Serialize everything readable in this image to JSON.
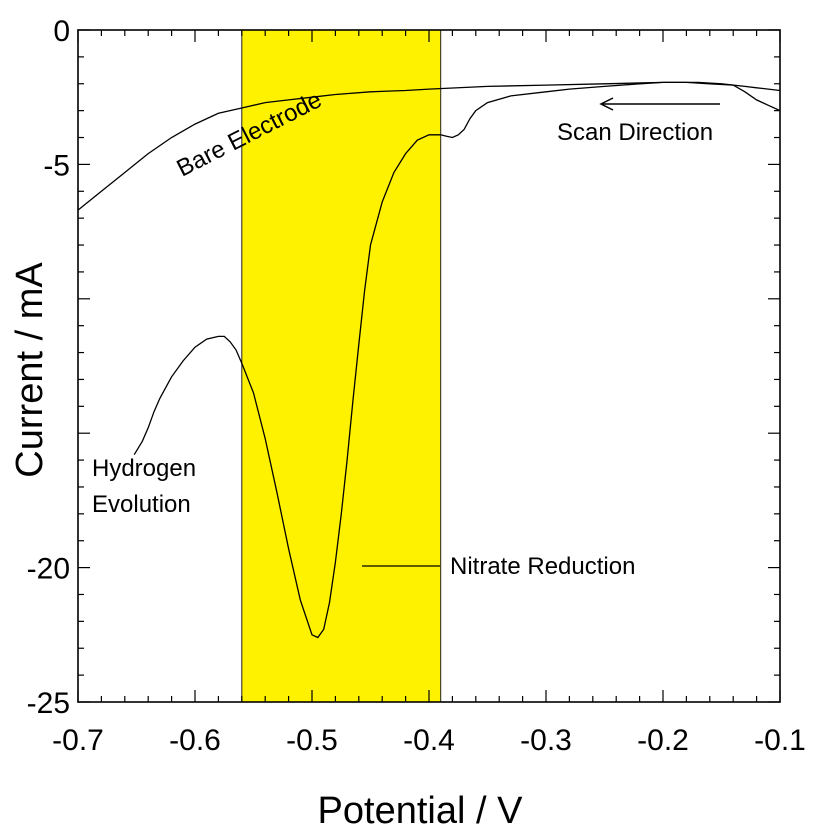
{
  "chart_data": {
    "type": "line",
    "title": "",
    "xlabel": "Potential / V",
    "ylabel": "Current / mA",
    "xlim": [
      -0.7,
      -0.1
    ],
    "ylim": [
      -25,
      0
    ],
    "x_ticks": [
      -0.7,
      -0.6,
      -0.5,
      -0.4,
      -0.3,
      -0.2,
      -0.1
    ],
    "x_tick_labels": [
      "-0.7",
      "-0.6",
      "-0.5",
      "-0.4",
      "-0.3",
      "-0.2",
      "-0.1"
    ],
    "y_ticks": [
      0,
      -5,
      -20,
      -25
    ],
    "y_tick_labels": [
      "0",
      "-5",
      "-20",
      "-25"
    ],
    "grid": false,
    "highlight_band": {
      "x_range": [
        -0.56,
        -0.39
      ],
      "color": "#fff200"
    },
    "series": [
      {
        "name": "Bare Electrode",
        "x": [
          -0.7,
          -0.68,
          -0.66,
          -0.64,
          -0.62,
          -0.6,
          -0.58,
          -0.56,
          -0.54,
          -0.52,
          -0.5,
          -0.48,
          -0.45,
          -0.42,
          -0.4,
          -0.35,
          -0.3,
          -0.25,
          -0.2,
          -0.17,
          -0.15,
          -0.13,
          -0.12,
          -0.11,
          -0.1
        ],
        "y": [
          -6.7,
          -6.0,
          -5.3,
          -4.6,
          -4.0,
          -3.5,
          -3.1,
          -2.9,
          -2.7,
          -2.6,
          -2.5,
          -2.4,
          -2.3,
          -2.25,
          -2.2,
          -2.1,
          -2.05,
          -2.0,
          -1.95,
          -1.95,
          -2.0,
          -2.1,
          -2.15,
          -2.2,
          -2.25
        ]
      },
      {
        "name": "",
        "x": [
          -0.652,
          -0.645,
          -0.64,
          -0.635,
          -0.63,
          -0.62,
          -0.61,
          -0.6,
          -0.59,
          -0.58,
          -0.575,
          -0.57,
          -0.565,
          -0.56,
          -0.55,
          -0.54,
          -0.53,
          -0.52,
          -0.51,
          -0.5,
          -0.495,
          -0.49,
          -0.485,
          -0.48,
          -0.475,
          -0.47,
          -0.465,
          -0.46,
          -0.455,
          -0.45,
          -0.44,
          -0.43,
          -0.42,
          -0.41,
          -0.4,
          -0.395,
          -0.39,
          -0.385,
          -0.38,
          -0.375,
          -0.37,
          -0.365,
          -0.36,
          -0.35,
          -0.33,
          -0.3,
          -0.28,
          -0.25,
          -0.22,
          -0.2,
          -0.18,
          -0.16,
          -0.14,
          -0.13,
          -0.12,
          -0.11,
          -0.1
        ],
        "y": [
          -15.8,
          -15.3,
          -14.8,
          -14.2,
          -13.7,
          -12.9,
          -12.3,
          -11.8,
          -11.5,
          -11.4,
          -11.4,
          -11.6,
          -11.9,
          -12.4,
          -13.5,
          -15.2,
          -17.2,
          -19.3,
          -21.2,
          -22.5,
          -22.6,
          -22.3,
          -21.3,
          -19.8,
          -18.0,
          -16.0,
          -13.8,
          -11.7,
          -9.7,
          -8.0,
          -6.4,
          -5.3,
          -4.6,
          -4.1,
          -3.9,
          -3.9,
          -3.9,
          -3.95,
          -4.0,
          -3.9,
          -3.7,
          -3.3,
          -3.0,
          -2.7,
          -2.45,
          -2.3,
          -2.2,
          -2.1,
          -2.0,
          -1.95,
          -1.95,
          -2.0,
          -2.05,
          -2.3,
          -2.6,
          -2.8,
          -3.0
        ]
      }
    ],
    "annotations": {
      "bare_electrode": "Bare Electrode",
      "scan_direction": "Scan Direction",
      "hydrogen_line1": "Hydrogen",
      "hydrogen_line2": "Evolution",
      "nitrate_reduction": "Nitrate Reduction"
    }
  }
}
